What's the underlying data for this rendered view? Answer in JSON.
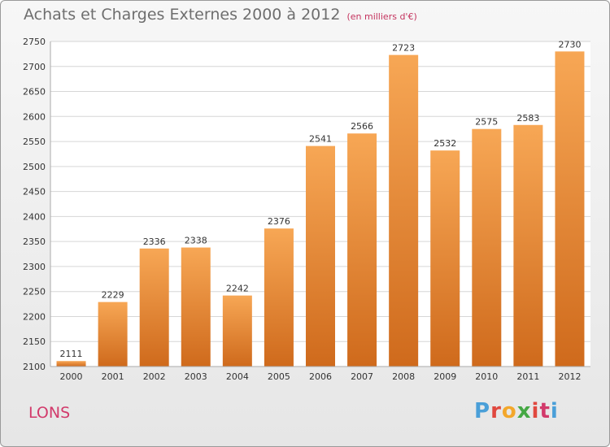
{
  "header": {
    "title": "Achats et Charges Externes 2000 à 2012",
    "subtitle": "(en milliers d'€)"
  },
  "footer": {
    "location": "LONS",
    "logo": {
      "text": "Proxiti",
      "colors": [
        "#4a9fd8",
        "#e0483f",
        "#f3a72b",
        "#45a844",
        "#e0483f",
        "#d23a6b",
        "#4a9fd8"
      ]
    }
  },
  "colors": {
    "bar_top": "#f7a755",
    "bar_bottom": "#cf6a1c",
    "grid": "#d6d6d6"
  },
  "chart_data": {
    "type": "bar",
    "title": "Achats et Charges Externes 2000 à 2012",
    "subtitle": "(en milliers d'€)",
    "categories": [
      "2000",
      "2001",
      "2002",
      "2003",
      "2004",
      "2005",
      "2006",
      "2007",
      "2008",
      "2009",
      "2010",
      "2011",
      "2012"
    ],
    "values": [
      2111,
      2229,
      2336,
      2338,
      2242,
      2376,
      2541,
      2566,
      2723,
      2532,
      2575,
      2583,
      2730
    ],
    "ylim": [
      2100,
      2750
    ],
    "yticks": [
      2100,
      2150,
      2200,
      2250,
      2300,
      2350,
      2400,
      2450,
      2500,
      2550,
      2600,
      2650,
      2700,
      2750
    ],
    "data_labels": true,
    "grid": true,
    "xlabel": "",
    "ylabel": ""
  }
}
